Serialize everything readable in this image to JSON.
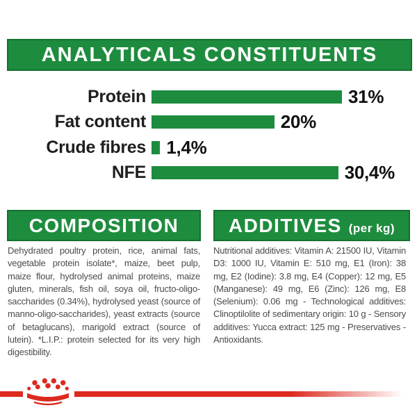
{
  "colors": {
    "green": "#1e8c3e",
    "green_border": "#15702f",
    "red": "#dc2a1f",
    "text_dark": "#1f1f1f",
    "text_body": "#4b4b4b"
  },
  "analyticals": {
    "title": "ANALYTICALS CONSTITUENTS"
  },
  "chart_data": {
    "type": "bar",
    "orientation": "horizontal",
    "title": "ANALYTICALS CONSTITUENTS",
    "categories": [
      "Protein",
      "Fat content",
      "Crude fibres",
      "NFE"
    ],
    "values": [
      31,
      20,
      1.4,
      30.4
    ],
    "value_labels": [
      "31%",
      "20%",
      "1,4%",
      "30,4%"
    ],
    "unit": "%",
    "xlim": [
      0,
      31
    ],
    "bar_color": "#1e8c3e",
    "grid": false,
    "legend": false
  },
  "composition": {
    "title": "COMPOSITION",
    "body": "Dehydrated poultry protein, rice, animal fats, vegetable protein isolate*, maize, beet pulp, maize flour, hydrolysed animal proteins, maize gluten, minerals, fish oil, soya oil, fructo-oligo-saccharides (0.34%), hydrolysed yeast (source of manno-oligo-saccharides), yeast extracts (source of betaglucans), marigold extract (source of lutein). *L.I.P.: protein selected for its very high digestibility."
  },
  "additives": {
    "title": "ADDITIVES",
    "subtitle": "(per kg)",
    "body": "Nutritional additives: Vitamin A: 21500 IU, Vitamin D3: 1000 IU, Vitamin E: 510 mg, E1 (Iron): 38 mg, E2 (Iodine): 3.8 mg, E4 (Copper): 12 mg, E5 (Manganese): 49 mg, E6 (Zinc): 126 mg, E8 (Selenium): 0.06 mg - Technological additives: Clinoptilolite of sedimentary origin: 10 g - Sensory additives: Yucca extract: 125 mg - Preservatives - Antioxidants."
  },
  "footer": {
    "brand_mark": "royal-canin-crown"
  }
}
